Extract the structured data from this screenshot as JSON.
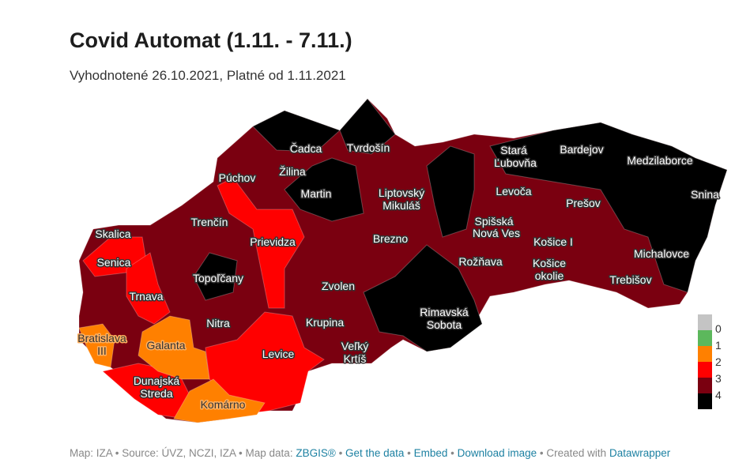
{
  "title": "Covid Automat (1.11. - 7.11.)",
  "subtitle": "Vyhodnotené 26.10.2021, Platné od 1.11.2021",
  "colors": {
    "0": "#c4c4c4",
    "1": "#5cb85c",
    "2": "#ff8000",
    "3": "#ff0000",
    "4": "#7a0010",
    "black": "#000000"
  },
  "legend": [
    "0",
    "1",
    "2",
    "3",
    "4"
  ],
  "districts": [
    "Čadca",
    "Tvrdošín",
    "Púchov",
    "Žilina",
    "Martin",
    "Liptovský",
    "Mikuláš",
    "Stará",
    "Ľubovňa",
    "Bardejov",
    "Medzilaborce",
    "Snina",
    "Levoča",
    "Prešov",
    "Trenčín",
    "Skalica",
    "Prievidza",
    "Senica",
    "Brezno",
    "Spišská",
    "Nová Ves",
    "Košice I",
    "Michalovce",
    "Rožňava",
    "Košice",
    "okolie",
    "Topoľčany",
    "Trnava",
    "Zvolen",
    "Trebišov",
    "Rimavská",
    "Sobota",
    "Nitra",
    "Krupina",
    "Bratislava",
    "III",
    "Galanta",
    "Levice",
    "Veľký",
    "Krtíš",
    "Dunajská",
    "Streda",
    "Komárno"
  ],
  "footer": {
    "map": "Map: IZA",
    "source": "Source: ÚVZ, NCZI, IZA",
    "map_data_label": "Map data:",
    "map_data_link": "ZBGIS®",
    "get_data": "Get the data",
    "embed": "Embed",
    "download": "Download image",
    "created_with": "Created with",
    "datawrapper": "Datawrapper"
  }
}
